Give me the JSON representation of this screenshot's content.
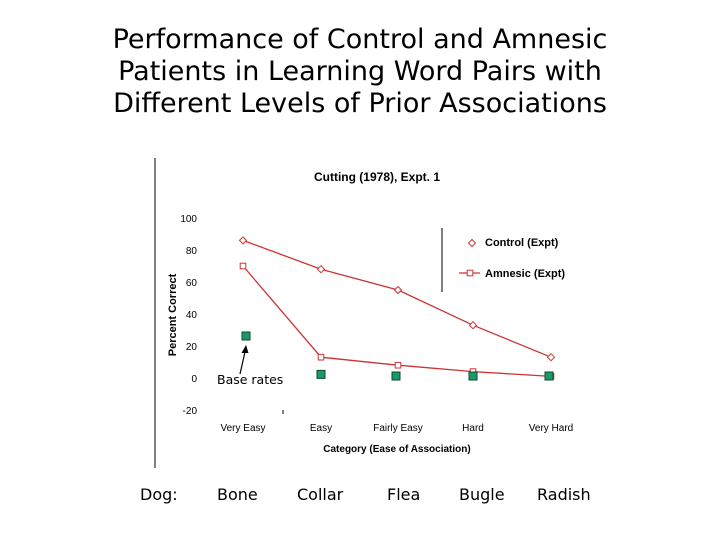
{
  "slide": {
    "title_lines": [
      "Performance of Control and Amnesic",
      "Patients in Learning Word Pairs with",
      "Different Levels of Prior Associations"
    ]
  },
  "annotation": {
    "base_rates": "Base rates"
  },
  "word_pairs": {
    "cue": "Dog:",
    "targets": [
      "Bone",
      "Collar",
      "Flea",
      "Bugle",
      "Radish"
    ]
  },
  "colors": {
    "control": "#cc3333",
    "amnesic": "#cc3333",
    "base": "#1a9a6a",
    "axis": "#000000"
  },
  "chart_data": {
    "type": "line",
    "title": "Cutting (1978), Expt. 1",
    "xlabel": "Category (Ease of Association)",
    "ylabel": "Percent Correct",
    "categories": [
      "Very Easy",
      "Easy",
      "Fairly Easy",
      "Hard",
      "Very Hard"
    ],
    "ylim": [
      -20,
      100
    ],
    "yticks": [
      100,
      80,
      60,
      40,
      20,
      0,
      -20
    ],
    "legend_position": "top-right",
    "series": [
      {
        "name": "Control (Expt)",
        "marker": "diamond",
        "values": [
          86,
          68,
          55,
          33,
          13
        ]
      },
      {
        "name": "Amnesic (Expt)",
        "marker": "square",
        "values": [
          70,
          13,
          8,
          4,
          1
        ]
      },
      {
        "name": "",
        "marker": "filled-square",
        "values": [
          25,
          1,
          0,
          0,
          0
        ]
      }
    ]
  }
}
